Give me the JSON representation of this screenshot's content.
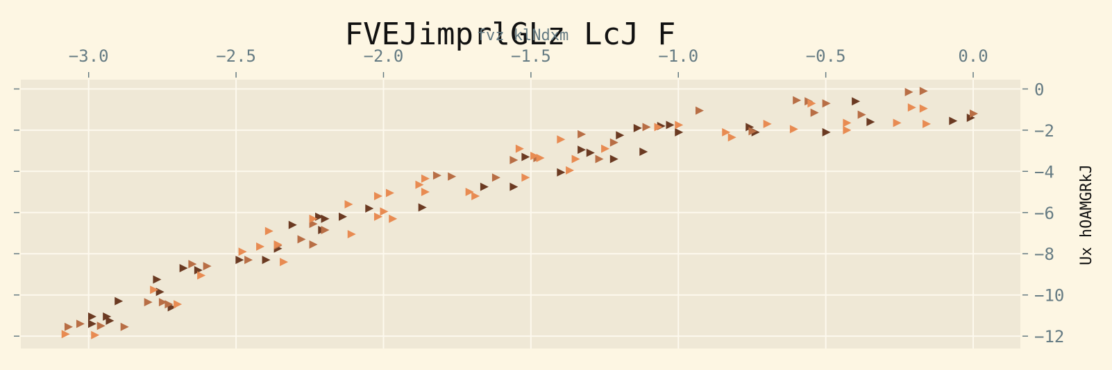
{
  "chart_data": {
    "type": "scatter",
    "title": "FVEJimprlGLz LcJ F",
    "xlabel": "fvz klNdxm",
    "ylabel": "Ux hOAMGRkJ",
    "xlim": [
      -3.23,
      0.16
    ],
    "ylim": [
      -12.6,
      0.45
    ],
    "xticks": [
      -3.0,
      -2.5,
      -2.0,
      -1.5,
      -1.0,
      -0.5,
      0.0
    ],
    "xtick_labels": [
      "−3.0",
      "−2.5",
      "−2.0",
      "−1.5",
      "−1.0",
      "−0.5",
      "0.0"
    ],
    "yticks": [
      0,
      -2,
      -4,
      -6,
      -8,
      -10,
      -12
    ],
    "ytick_labels": [
      "0",
      "−2",
      "−4",
      "−6",
      "−8",
      "−10",
      "−12"
    ],
    "x_axis_position": "top",
    "y_axis_position": "right",
    "grid": true,
    "marker": "triangle-right",
    "colors": {
      "background": "#fdf6e3",
      "plot_area": "#efe8d6",
      "grid": "#fdf9ee",
      "series_dark": "#6b3a22",
      "series_mid": "#b86e45",
      "series_light": "#e88b52"
    },
    "series": [
      {
        "color": "#6b3a22",
        "points": [
          [
            -2.99,
            -11.05
          ],
          [
            -2.99,
            -11.4
          ],
          [
            -2.93,
            -11.25
          ],
          [
            -2.94,
            -11.05
          ],
          [
            -2.9,
            -10.3
          ],
          [
            -2.77,
            -9.25
          ],
          [
            -2.76,
            -9.85
          ],
          [
            -2.72,
            -10.6
          ],
          [
            -2.68,
            -8.7
          ],
          [
            -2.63,
            -8.8
          ],
          [
            -2.49,
            -8.3
          ],
          [
            -2.4,
            -8.3
          ],
          [
            -2.36,
            -7.75
          ],
          [
            -2.31,
            -6.6
          ],
          [
            -2.22,
            -6.2
          ],
          [
            -2.2,
            -6.3
          ],
          [
            -2.21,
            -6.85
          ],
          [
            -2.14,
            -6.2
          ],
          [
            -2.05,
            -5.8
          ],
          [
            -1.87,
            -5.75
          ],
          [
            -1.66,
            -4.75
          ],
          [
            -1.56,
            -4.75
          ],
          [
            -1.52,
            -3.3
          ],
          [
            -1.4,
            -4.05
          ],
          [
            -1.33,
            -2.95
          ],
          [
            -1.3,
            -3.1
          ],
          [
            -1.22,
            -3.4
          ],
          [
            -1.2,
            -2.25
          ],
          [
            -1.14,
            -1.9
          ],
          [
            -1.12,
            -3.05
          ],
          [
            -1.06,
            -1.8
          ],
          [
            -1.03,
            -1.75
          ],
          [
            -1.0,
            -2.1
          ],
          [
            -0.74,
            -2.1
          ],
          [
            -0.76,
            -1.85
          ],
          [
            -0.5,
            -2.1
          ],
          [
            -0.4,
            -0.6
          ],
          [
            -0.35,
            -1.6
          ],
          [
            -0.07,
            -1.55
          ],
          [
            -0.01,
            -1.4
          ]
        ]
      },
      {
        "color": "#b86e45",
        "points": [
          [
            -3.07,
            -11.55
          ],
          [
            -3.03,
            -11.4
          ],
          [
            -2.96,
            -11.5
          ],
          [
            -2.88,
            -11.55
          ],
          [
            -2.8,
            -10.35
          ],
          [
            -2.75,
            -10.35
          ],
          [
            -2.73,
            -10.45
          ],
          [
            -2.65,
            -8.5
          ],
          [
            -2.6,
            -8.6
          ],
          [
            -2.46,
            -8.3
          ],
          [
            -2.36,
            -7.6
          ],
          [
            -2.28,
            -7.3
          ],
          [
            -2.24,
            -7.55
          ],
          [
            -2.24,
            -6.55
          ],
          [
            -2.2,
            -6.85
          ],
          [
            -1.82,
            -4.2
          ],
          [
            -1.77,
            -4.25
          ],
          [
            -1.62,
            -4.3
          ],
          [
            -1.56,
            -3.45
          ],
          [
            -1.48,
            -3.35
          ],
          [
            -1.33,
            -2.2
          ],
          [
            -1.27,
            -3.4
          ],
          [
            -1.22,
            -2.6
          ],
          [
            -1.11,
            -1.85
          ],
          [
            -0.93,
            -1.05
          ],
          [
            -0.75,
            -2.05
          ],
          [
            -0.6,
            -0.55
          ],
          [
            -0.56,
            -0.6
          ],
          [
            -0.54,
            -1.15
          ],
          [
            -0.5,
            -0.7
          ],
          [
            -0.38,
            -1.25
          ],
          [
            -0.22,
            -0.15
          ],
          [
            -0.17,
            -0.1
          ],
          [
            0.0,
            -1.2
          ]
        ]
      },
      {
        "color": "#e88b52",
        "points": [
          [
            -3.08,
            -11.9
          ],
          [
            -2.98,
            -11.95
          ],
          [
            -2.78,
            -9.75
          ],
          [
            -2.7,
            -10.45
          ],
          [
            -2.62,
            -9.05
          ],
          [
            -2.48,
            -7.9
          ],
          [
            -2.42,
            -7.65
          ],
          [
            -2.39,
            -6.9
          ],
          [
            -2.36,
            -7.55
          ],
          [
            -2.34,
            -8.4
          ],
          [
            -2.24,
            -6.3
          ],
          [
            -2.12,
            -5.6
          ],
          [
            -2.11,
            -7.05
          ],
          [
            -2.02,
            -5.2
          ],
          [
            -2.02,
            -6.2
          ],
          [
            -2.0,
            -5.95
          ],
          [
            -1.98,
            -5.05
          ],
          [
            -1.97,
            -6.3
          ],
          [
            -1.88,
            -4.65
          ],
          [
            -1.86,
            -4.35
          ],
          [
            -1.86,
            -5.0
          ],
          [
            -1.71,
            -5.0
          ],
          [
            -1.69,
            -5.2
          ],
          [
            -1.54,
            -2.9
          ],
          [
            -1.52,
            -4.3
          ],
          [
            -1.49,
            -3.25
          ],
          [
            -1.47,
            -3.35
          ],
          [
            -1.4,
            -2.45
          ],
          [
            -1.37,
            -3.95
          ],
          [
            -1.35,
            -3.4
          ],
          [
            -1.25,
            -2.9
          ],
          [
            -1.07,
            -1.85
          ],
          [
            -1.0,
            -1.75
          ],
          [
            -0.84,
            -2.1
          ],
          [
            -0.82,
            -2.35
          ],
          [
            -0.7,
            -1.7
          ],
          [
            -0.61,
            -1.95
          ],
          [
            -0.55,
            -0.7
          ],
          [
            -0.43,
            -1.65
          ],
          [
            -0.43,
            -2.0
          ],
          [
            -0.26,
            -1.65
          ],
          [
            -0.21,
            -0.9
          ],
          [
            -0.17,
            -0.95
          ],
          [
            -0.16,
            -1.7
          ]
        ]
      }
    ]
  }
}
